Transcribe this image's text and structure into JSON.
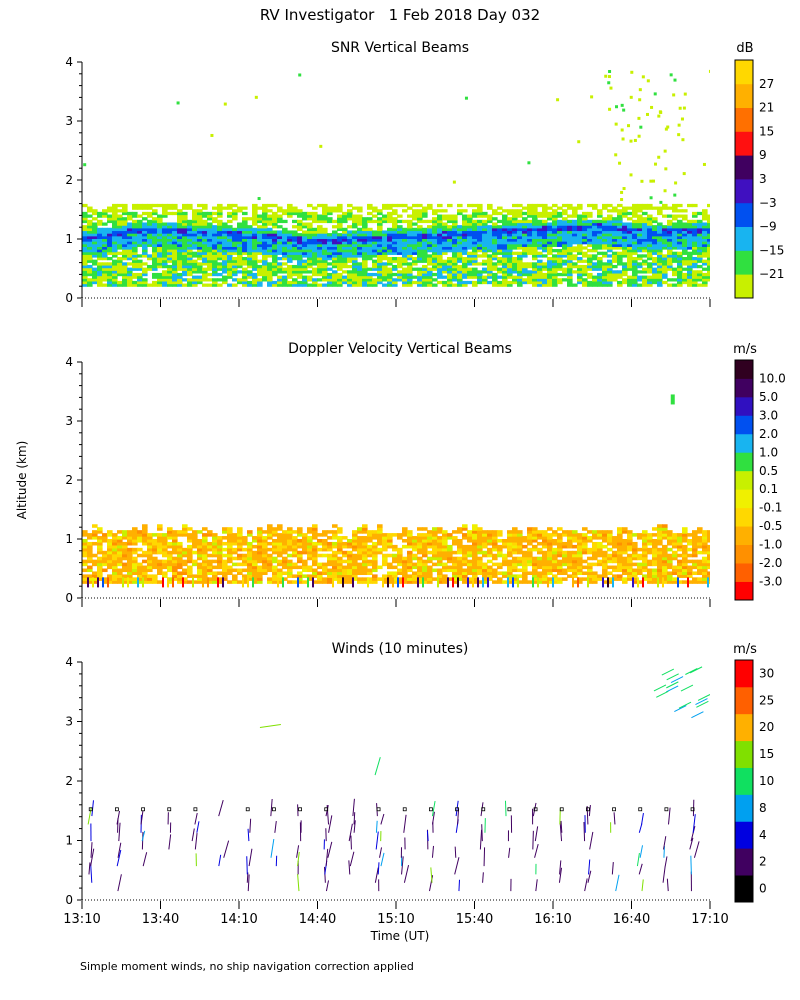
{
  "figure_title": "RV Investigator   1 Feb 2018 Day 032",
  "footnote": "Simple moment winds, no ship navigation correction applied",
  "shared_y_label": "Altitude (km)",
  "chart_data": [
    {
      "type": "heatmap",
      "title": "SNR Vertical Beams",
      "ylabel": "Altitude (km)",
      "ylim": [
        0,
        4
      ],
      "yticks": [
        "0",
        "1",
        "2",
        "3",
        "4"
      ],
      "xlim_minutes": [
        0,
        240
      ],
      "colorbar": {
        "unit": "dB",
        "labels": [
          "−21",
          "−15",
          "−9",
          "−3",
          "3",
          "9",
          "15",
          "21",
          "27"
        ],
        "colors": [
          "#c8f000",
          "#30e040",
          "#18b4f0",
          "#0050f0",
          "#4010c0",
          "#400060",
          "#ff1010",
          "#ff7000",
          "#ffb000",
          "#ffd800"
        ]
      },
      "features": {
        "boundary_layer_top_km": [
          1.0,
          1.15,
          1.1,
          1.05,
          0.95,
          1.0,
          1.05,
          1.1,
          1.15,
          1.2,
          1.1,
          1.15
        ],
        "layer_band_km": [
          0.2,
          1.55
        ],
        "scattered_echo_km": [
          1.6,
          4.0
        ]
      }
    },
    {
      "type": "heatmap",
      "title": "Doppler Velocity Vertical Beams",
      "ylabel": "Altitude (km)",
      "ylim": [
        0,
        4
      ],
      "yticks": [
        "0",
        "1",
        "2",
        "3",
        "4"
      ],
      "xlim_minutes": [
        0,
        240
      ],
      "colorbar": {
        "unit": "m/s",
        "labels": [
          "-3.0",
          "-2.0",
          "-1.0",
          "-0.5",
          "-0.1",
          "0.1",
          "0.5",
          "1.0",
          "2.0",
          "3.0",
          "5.0",
          "10.0"
        ],
        "colors": [
          "#ff0000",
          "#ff6000",
          "#ff9000",
          "#ffb000",
          "#ffd800",
          "#f0f000",
          "#c8f000",
          "#30e040",
          "#18b4f0",
          "#0050f0",
          "#3010c0",
          "#400060",
          "#300020"
        ]
      },
      "features": {
        "echo_band_km": [
          0.2,
          1.35
        ]
      }
    },
    {
      "type": "scatter",
      "title": "Winds (10 minutes)",
      "ylabel": "Altitude (km)",
      "xlabel": "Time (UT)",
      "ylim": [
        0,
        4
      ],
      "yticks": [
        "0",
        "1",
        "2",
        "3",
        "4"
      ],
      "xlim_minutes": [
        0,
        240
      ],
      "xticks": [
        "13:10",
        "13:40",
        "14:10",
        "14:40",
        "15:10",
        "15:40",
        "16:10",
        "16:40",
        "17:10"
      ],
      "colorbar": {
        "unit": "m/s",
        "labels": [
          "0",
          "2",
          "4",
          "8",
          "10",
          "15",
          "20",
          "25",
          "30"
        ],
        "colors": [
          "#000000",
          "#400060",
          "#0000e0",
          "#00a0f0",
          "#10e060",
          "#80e000",
          "#ffb000",
          "#ff6000",
          "#ff0000"
        ]
      },
      "barb_range_km": [
        0.1,
        1.5
      ],
      "high_winds_km": [
        2.8,
        4.0
      ]
    }
  ]
}
